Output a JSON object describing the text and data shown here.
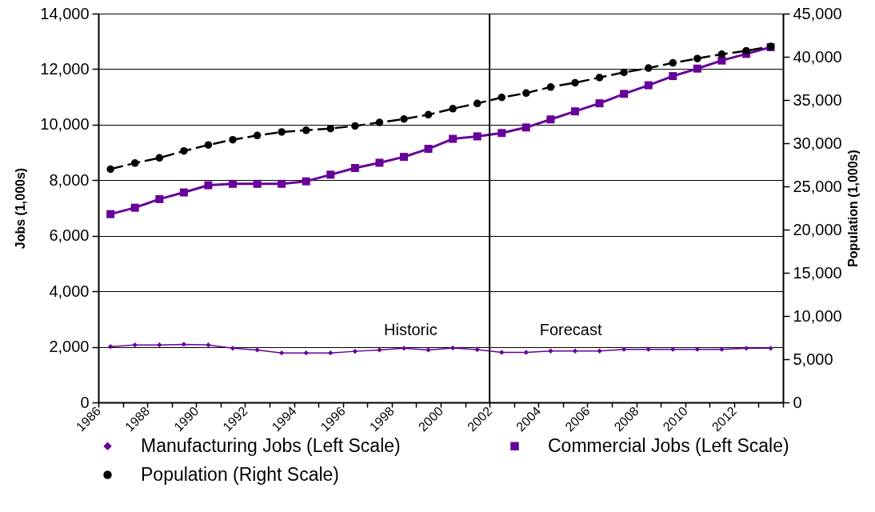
{
  "chart_data": {
    "type": "line",
    "ylabel": "Jobs (1,000s)",
    "y2label": "Population (1,000s)",
    "x": [
      "1986-07",
      "1987-07",
      "1988-07",
      "1989-07",
      "1990-07",
      "1991-07",
      "1992-07",
      "1993-07",
      "1994-07",
      "1995-07",
      "1996-07",
      "1997-07",
      "1998-07",
      "1999-07",
      "2000-07",
      "2001-07",
      "2002-07",
      "2003-07",
      "2004-07",
      "2005-07",
      "2006-07",
      "2007-07",
      "2008-07",
      "2009-07",
      "2010-07",
      "2011-07",
      "2012-07",
      "2013-07"
    ],
    "xlim": [
      "1986",
      "2014"
    ],
    "xticks": [
      "1986",
      {
        "value": "1987",
        "label": null
      },
      "1988",
      {
        "value": "1989",
        "label": null
      },
      "1990",
      {
        "value": "1991",
        "label": null
      },
      "1992",
      {
        "value": "1993",
        "label": null
      },
      "1994",
      {
        "value": "1995",
        "label": null
      },
      "1996",
      {
        "value": "1997",
        "label": null
      },
      "1998",
      {
        "value": "1999",
        "label": null
      },
      "2000",
      {
        "value": "2001",
        "label": null
      },
      "2002",
      {
        "value": "2003",
        "label": null
      },
      "2004",
      {
        "value": "2005",
        "label": null
      },
      "2006",
      {
        "value": "2007",
        "label": null
      },
      "2008",
      {
        "value": "2009",
        "label": null
      },
      "2010",
      {
        "value": "2011",
        "label": null
      },
      "2012",
      {
        "value": "2013",
        "label": null
      },
      {
        "value": "2014",
        "label": null
      }
    ],
    "ylim": [
      0,
      14000
    ],
    "yticks": [
      0,
      {
        "value": 2000,
        "label": "2,000"
      },
      {
        "value": 4000,
        "label": "4,000"
      },
      {
        "value": 6000,
        "label": "6,000"
      },
      {
        "value": 8000,
        "label": "8,000"
      },
      {
        "value": 10000,
        "label": "10,000"
      },
      {
        "value": 12000,
        "label": "12,000"
      },
      {
        "value": 14000,
        "label": "14,000"
      }
    ],
    "y2lim": [
      0,
      45000
    ],
    "y2ticks": [
      0,
      {
        "value": 5000,
        "label": "5,000"
      },
      {
        "value": 10000,
        "label": "10,000"
      },
      {
        "value": 15000,
        "label": "15,000"
      },
      {
        "value": 20000,
        "label": "20,000"
      },
      {
        "value": 25000,
        "label": "25,000"
      },
      {
        "value": 30000,
        "label": "30,000"
      },
      {
        "value": 35000,
        "label": "35,000"
      },
      {
        "value": 40000,
        "label": "40,000"
      },
      {
        "value": 45000,
        "label": "45,000"
      }
    ],
    "series": [
      {
        "name": "Manufacturing Jobs (Left Scale)",
        "color": "#660099",
        "marker": "diamond",
        "values": [
          2010,
          2070,
          2070,
          2090,
          2070,
          1950,
          1890,
          1780,
          1780,
          1780,
          1840,
          1890,
          1950,
          1890,
          1960,
          1900,
          1800,
          1800,
          1850,
          1850,
          1850,
          1910,
          1910,
          1910,
          1910,
          1910,
          1950,
          1950
        ]
      },
      {
        "name": "Commercial Jobs (Left Scale)",
        "color": "#660099",
        "marker": "square",
        "values": [
          6780,
          7010,
          7320,
          7560,
          7820,
          7870,
          7870,
          7870,
          7960,
          8200,
          8440,
          8630,
          8840,
          9130,
          9490,
          9580,
          9700,
          9900,
          10190,
          10480,
          10770,
          11110,
          11420,
          11750,
          12020,
          12310,
          12550,
          12790
        ]
      },
      {
        "name": "Population (Right Scale)",
        "color": "#000000",
        "marker": "circle",
        "line_style": "dashed",
        "axis": "y2",
        "values": [
          27000,
          27700,
          28300,
          29100,
          29800,
          30400,
          30900,
          31300,
          31500,
          31700,
          32000,
          32400,
          32800,
          33300,
          34000,
          34600,
          35300,
          35800,
          36500,
          37000,
          37600,
          38200,
          38700,
          39300,
          39800,
          40300,
          40700,
          41200
        ]
      }
    ],
    "ref_lines": [
      {
        "axis": "x",
        "value": "2002",
        "color": "#000000"
      }
    ],
    "annotations": [
      "Historic",
      "Forecast"
    ],
    "grid": "y",
    "legend": "bottom"
  }
}
